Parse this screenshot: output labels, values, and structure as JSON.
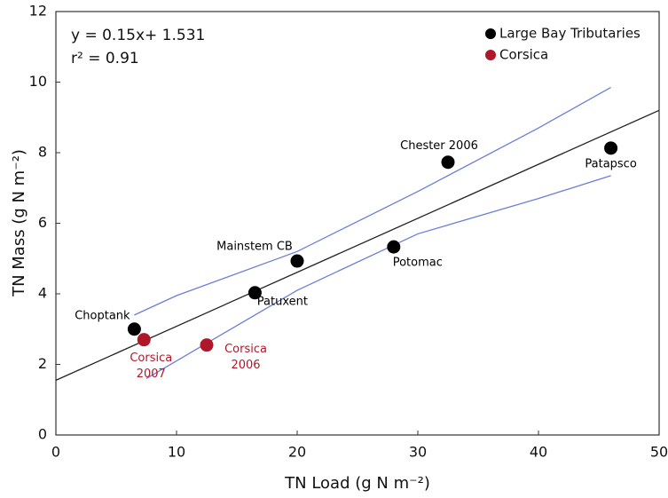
{
  "chart_data": {
    "type": "scatter",
    "xlabel": "TN Load (g N m⁻²)",
    "ylabel": "TN Mass (g N m⁻²)",
    "annotations": [
      "y = 0.15x+ 1.531",
      "r² = 0.91"
    ],
    "xlim": [
      0,
      50
    ],
    "xticks": [
      0,
      10,
      20,
      30,
      40,
      50
    ],
    "ylim": [
      0,
      12
    ],
    "yticks": [
      0,
      2,
      4,
      6,
      8,
      10,
      12
    ],
    "legend": "upper right",
    "series": [
      {
        "name": "Large Bay Tributaries",
        "color": "#000000",
        "x": [
          6.5,
          16.5,
          20,
          28,
          32.5,
          46
        ],
        "values": [
          3.0,
          4.03,
          4.93,
          5.33,
          7.73,
          8.13
        ],
        "labels": [
          [
            "Choptank"
          ],
          [
            "Patuxent"
          ],
          [
            "Mainstem CB"
          ],
          [
            "Potomac"
          ],
          [
            "Chester 2006"
          ],
          [
            "Patapsco"
          ]
        ]
      },
      {
        "name": "Corsica",
        "color": "#b0182a",
        "x": [
          7.3,
          12.5
        ],
        "values": [
          2.7,
          2.55
        ],
        "labels": [
          [
            "Corsica",
            "2007"
          ],
          [
            "Corsica",
            "2006"
          ]
        ]
      }
    ],
    "lines": [
      {
        "color": "#222222",
        "x": [
          0,
          50
        ],
        "values": [
          1.55,
          9.2
        ]
      },
      {
        "color": "#6a7fd6",
        "x": [
          6.5,
          10,
          20,
          30,
          40,
          46
        ],
        "values": [
          3.4,
          3.95,
          5.2,
          6.9,
          8.7,
          9.85
        ]
      },
      {
        "color": "#6a7fd6",
        "x": [
          7.5,
          10,
          20,
          30,
          40,
          46
        ],
        "values": [
          1.6,
          2.1,
          4.1,
          5.7,
          6.7,
          7.35
        ]
      }
    ]
  }
}
